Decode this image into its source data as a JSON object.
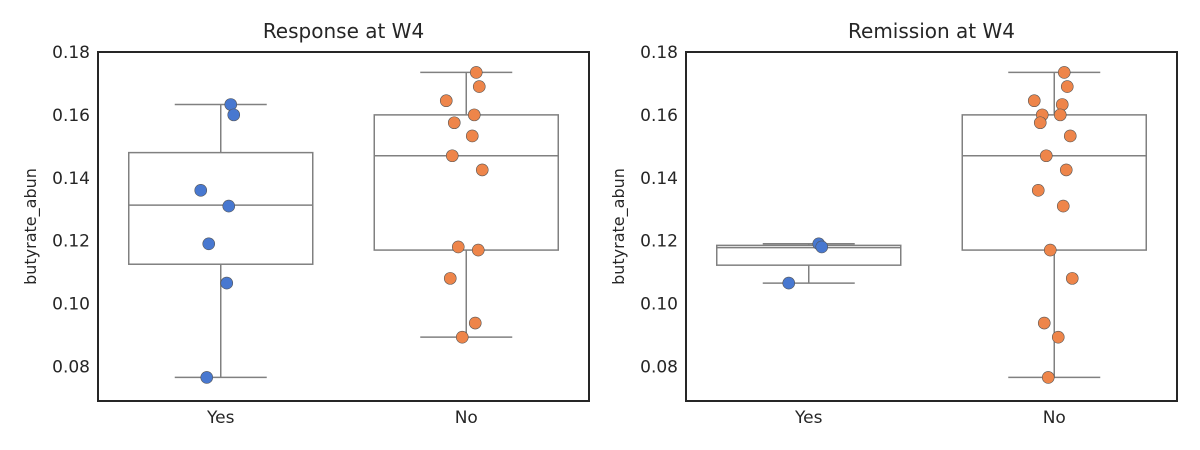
{
  "chart_data": [
    {
      "type": "box",
      "title": "Response at W4",
      "xlabel": "",
      "ylabel": "butyrate_abun",
      "ylim": [
        0.069,
        0.18
      ],
      "yticks": [
        0.08,
        0.1,
        0.12,
        0.14,
        0.16,
        0.18
      ],
      "ytick_labels": [
        "0.08",
        "0.10",
        "0.12",
        "0.14",
        "0.16",
        "0.18"
      ],
      "categories": [
        "Yes",
        "No"
      ],
      "grid": false,
      "series": [
        {
          "color": "#4878d0",
          "box": {
            "whisker_low": 0.0765,
            "q1": 0.1125,
            "median": 0.1313,
            "q3": 0.148,
            "whisker_high": 0.1633
          },
          "points": [
            0.1633,
            0.16,
            0.136,
            0.131,
            0.119,
            0.1065,
            0.0765
          ]
        },
        {
          "color": "#ee854a",
          "box": {
            "whisker_low": 0.0893,
            "q1": 0.117,
            "median": 0.147,
            "q3": 0.16,
            "whisker_high": 0.1735
          },
          "points": [
            0.1735,
            0.169,
            0.1645,
            0.16,
            0.1575,
            0.1533,
            0.147,
            0.1425,
            0.118,
            0.117,
            0.108,
            0.0938,
            0.0893
          ]
        }
      ]
    },
    {
      "type": "box",
      "title": "Remission at W4",
      "xlabel": "",
      "ylabel": "butyrate_abun",
      "ylim": [
        0.069,
        0.18
      ],
      "yticks": [
        0.08,
        0.1,
        0.12,
        0.14,
        0.16,
        0.18
      ],
      "ytick_labels": [
        "0.08",
        "0.10",
        "0.12",
        "0.14",
        "0.16",
        "0.18"
      ],
      "categories": [
        "Yes",
        "No"
      ],
      "grid": false,
      "series": [
        {
          "color": "#4878d0",
          "box": {
            "whisker_low": 0.1065,
            "q1": 0.1122,
            "median": 0.1178,
            "q3": 0.1185,
            "whisker_high": 0.119
          },
          "points": [
            0.119,
            0.118,
            0.1065
          ]
        },
        {
          "color": "#ee854a",
          "box": {
            "whisker_low": 0.0765,
            "q1": 0.117,
            "median": 0.147,
            "q3": 0.16,
            "whisker_high": 0.1735
          },
          "points": [
            0.1735,
            0.169,
            0.1645,
            0.1633,
            0.16,
            0.16,
            0.1575,
            0.1533,
            0.147,
            0.1425,
            0.136,
            0.131,
            0.117,
            0.108,
            0.0938,
            0.0893,
            0.0765
          ]
        }
      ]
    }
  ]
}
